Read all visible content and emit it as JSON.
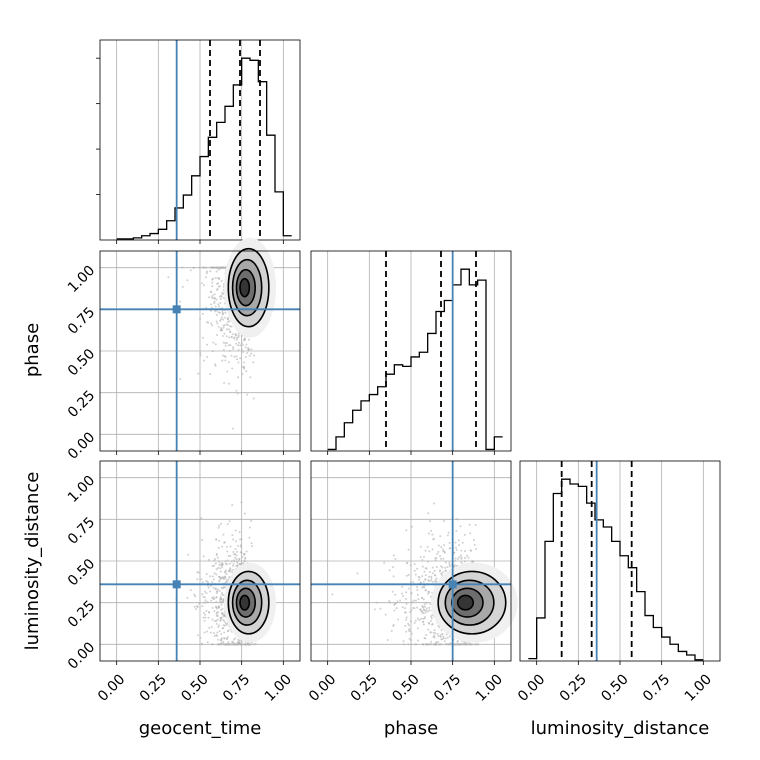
{
  "chart_data": {
    "type": "corner",
    "parameters": [
      "geocent_time",
      "phase",
      "luminosity_distance"
    ],
    "axis_range": [
      -0.1,
      1.1
    ],
    "tick_values": [
      0.0,
      0.25,
      0.5,
      0.75,
      1.0
    ],
    "tick_labels": [
      "0.00",
      "0.25",
      "0.50",
      "0.75",
      "1.00"
    ],
    "grid": true,
    "colors": {
      "truth": "#4682b4",
      "hist": "#000000",
      "quantile": "#000000",
      "points": "#b0b0b0"
    },
    "truths": {
      "geocent_time": 0.36,
      "phase": 0.75,
      "luminosity_distance": 0.36
    },
    "histograms": [
      {
        "parameter": "geocent_time",
        "bin_edges": [
          0.0,
          0.05,
          0.1,
          0.15,
          0.2,
          0.25,
          0.3,
          0.35,
          0.4,
          0.45,
          0.5,
          0.55,
          0.6,
          0.65,
          0.7,
          0.75,
          0.8,
          0.85,
          0.9,
          0.95,
          1.0,
          1.05
        ],
        "counts": [
          1,
          1,
          2,
          4,
          6,
          10,
          18,
          30,
          42,
          60,
          78,
          96,
          110,
          125,
          145,
          170,
          168,
          148,
          98,
          45,
          4
        ],
        "quantiles": [
          0.56,
          0.74,
          0.86
        ]
      },
      {
        "parameter": "phase",
        "bin_edges": [
          0.0,
          0.05,
          0.1,
          0.15,
          0.2,
          0.25,
          0.3,
          0.35,
          0.4,
          0.45,
          0.5,
          0.55,
          0.6,
          0.65,
          0.7,
          0.75,
          0.8,
          0.85,
          0.9,
          0.95,
          1.0,
          1.05
        ],
        "counts": [
          2,
          18,
          36,
          52,
          64,
          72,
          82,
          98,
          110,
          108,
          120,
          126,
          150,
          178,
          192,
          212,
          232,
          212,
          218,
          2,
          18
        ],
        "quantiles": [
          0.35,
          0.68,
          0.89
        ]
      },
      {
        "parameter": "luminosity_distance",
        "bin_edges": [
          -0.05,
          0.0,
          0.05,
          0.1,
          0.15,
          0.2,
          0.25,
          0.3,
          0.35,
          0.4,
          0.45,
          0.5,
          0.55,
          0.6,
          0.65,
          0.7,
          0.75,
          0.8,
          0.85,
          0.9,
          0.95,
          1.0
        ],
        "counts": [
          2,
          36,
          100,
          140,
          152,
          148,
          146,
          132,
          118,
          112,
          100,
          88,
          78,
          58,
          38,
          28,
          20,
          14,
          8,
          5,
          1
        ],
        "quantiles": [
          0.15,
          0.33,
          0.57
        ]
      }
    ],
    "scatter_panels": [
      {
        "x": "geocent_time",
        "y": "phase",
        "peak": [
          0.8,
          0.88
        ],
        "spread": [
          0.12,
          0.25
        ]
      },
      {
        "x": "geocent_time",
        "y": "luminosity_distance",
        "peak": [
          0.8,
          0.25
        ],
        "spread": [
          0.12,
          0.2
        ]
      },
      {
        "x": "phase",
        "y": "luminosity_distance",
        "peak": [
          0.88,
          0.25
        ],
        "spread": [
          0.2,
          0.2
        ]
      }
    ]
  }
}
